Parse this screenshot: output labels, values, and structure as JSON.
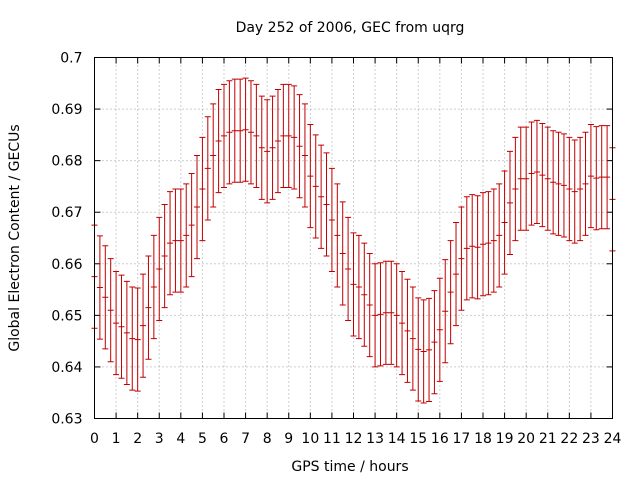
{
  "chart_data": {
    "type": "errorbar",
    "title": "Day 252 of 2006, GEC from uqrg",
    "xlabel": "GPS time / hours",
    "ylabel": "Global Electron Content / GECUs",
    "xlim": [
      0,
      24
    ],
    "ylim": [
      0.63,
      0.7
    ],
    "xticks": [
      "0",
      "1",
      "2",
      "3",
      "4",
      "5",
      "6",
      "7",
      "8",
      "9",
      "10",
      "11",
      "12",
      "13",
      "14",
      "15",
      "16",
      "17",
      "18",
      "19",
      "20",
      "21",
      "22",
      "23",
      "24"
    ],
    "yticks": [
      "0.63",
      "0.64",
      "0.65",
      "0.66",
      "0.67",
      "0.68",
      "0.69",
      "0.7"
    ],
    "grid": true,
    "series_color": "#c00000",
    "series": [
      {
        "x": [
          0,
          0.25,
          0.5,
          0.75,
          1,
          1.25,
          1.5,
          1.75,
          2,
          2.25,
          2.5,
          2.75,
          3,
          3.25,
          3.5,
          3.75,
          4,
          4.25,
          4.5,
          4.75,
          5,
          5.25,
          5.5,
          5.75,
          6,
          6.25,
          6.5,
          6.75,
          7,
          7.25,
          7.5,
          7.75,
          8,
          8.25,
          8.5,
          8.75,
          9,
          9.25,
          9.5,
          9.75,
          10,
          10.25,
          10.5,
          10.75,
          11,
          11.25,
          11.5,
          11.75,
          12,
          12.25,
          12.5,
          12.75,
          13,
          13.25,
          13.5,
          13.75,
          14,
          14.25,
          14.5,
          14.75,
          15,
          15.25,
          15.5,
          15.75,
          16,
          16.25,
          16.5,
          16.75,
          17,
          17.25,
          17.5,
          17.75,
          18,
          18.25,
          18.5,
          18.75,
          19,
          19.25,
          19.5,
          19.75,
          20,
          20.25,
          20.5,
          20.75,
          21,
          21.25,
          21.5,
          21.75,
          22,
          22.25,
          22.5,
          22.75,
          23,
          23.25,
          23.5,
          23.75,
          24
        ],
        "y": [
          0.6575,
          0.6554,
          0.6535,
          0.651,
          0.6485,
          0.6478,
          0.6466,
          0.6455,
          0.6453,
          0.648,
          0.6515,
          0.6555,
          0.659,
          0.6615,
          0.664,
          0.6645,
          0.6645,
          0.6655,
          0.6675,
          0.671,
          0.6745,
          0.6785,
          0.681,
          0.6838,
          0.6848,
          0.6855,
          0.6858,
          0.6858,
          0.686,
          0.6855,
          0.6848,
          0.6825,
          0.6818,
          0.6825,
          0.6838,
          0.6848,
          0.6848,
          0.6845,
          0.6828,
          0.681,
          0.677,
          0.675,
          0.673,
          0.6715,
          0.6685,
          0.6655,
          0.662,
          0.659,
          0.656,
          0.6555,
          0.654,
          0.652,
          0.65,
          0.6502,
          0.6505,
          0.6505,
          0.65,
          0.6485,
          0.647,
          0.6455,
          0.6434,
          0.643,
          0.6433,
          0.6448,
          0.6472,
          0.6508,
          0.6545,
          0.658,
          0.661,
          0.663,
          0.6634,
          0.6632,
          0.6638,
          0.664,
          0.6645,
          0.6655,
          0.668,
          0.6718,
          0.6745,
          0.6765,
          0.6765,
          0.6775,
          0.6778,
          0.6772,
          0.6765,
          0.6758,
          0.6755,
          0.6752,
          0.6745,
          0.674,
          0.6745,
          0.6755,
          0.677,
          0.6766,
          0.6768,
          0.6768,
          0.6725
        ],
        "err": [
          0.01,
          0.01,
          0.01,
          0.01,
          0.01,
          0.01,
          0.01,
          0.01,
          0.01,
          0.01,
          0.01,
          0.01,
          0.01,
          0.01,
          0.01,
          0.01,
          0.01,
          0.01,
          0.01,
          0.01,
          0.01,
          0.01,
          0.01,
          0.01,
          0.01,
          0.01,
          0.01,
          0.01,
          0.01,
          0.01,
          0.01,
          0.01,
          0.01,
          0.01,
          0.01,
          0.01,
          0.01,
          0.01,
          0.01,
          0.01,
          0.01,
          0.01,
          0.01,
          0.01,
          0.01,
          0.01,
          0.01,
          0.01,
          0.01,
          0.01,
          0.01,
          0.01,
          0.01,
          0.01,
          0.01,
          0.01,
          0.01,
          0.01,
          0.01,
          0.01,
          0.01,
          0.01,
          0.01,
          0.01,
          0.01,
          0.01,
          0.01,
          0.01,
          0.01,
          0.01,
          0.01,
          0.01,
          0.01,
          0.01,
          0.01,
          0.01,
          0.01,
          0.01,
          0.01,
          0.01,
          0.01,
          0.01,
          0.01,
          0.01,
          0.01,
          0.01,
          0.01,
          0.01,
          0.01,
          0.01,
          0.01,
          0.01,
          0.01,
          0.01,
          0.01,
          0.01,
          0.01
        ]
      }
    ]
  }
}
